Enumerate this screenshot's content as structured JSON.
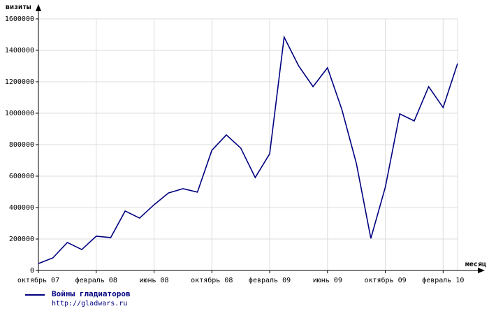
{
  "chart_data": {
    "type": "line",
    "y_label": "визиты",
    "x_label": "месяц",
    "categories": [
      "октябрь 07",
      null,
      null,
      null,
      "февраль 08",
      null,
      null,
      null,
      "июнь 08",
      null,
      null,
      null,
      "октябрь 08",
      null,
      null,
      null,
      "февраль 09",
      null,
      null,
      null,
      "июнь 09",
      null,
      null,
      null,
      "октябрь 09",
      null,
      null,
      null,
      "февраль 10",
      null
    ],
    "series": [
      {
        "name": "Войны гладиаторов",
        "color": "#000080",
        "values": [
          44000,
          80000,
          178000,
          133000,
          218000,
          209000,
          378000,
          333000,
          418000,
          493000,
          520000,
          498000,
          764000,
          862000,
          778000,
          591000,
          742000,
          1484000,
          1302000,
          1169000,
          1289000,
          1022000,
          680000,
          204000,
          529000,
          996000,
          951000,
          1169000,
          1036000,
          1316000
        ]
      }
    ],
    "legend_note": "http://gladwars.ru",
    "ylim": [
      0,
      1600000
    ],
    "yticks": [
      0,
      200000,
      400000,
      600000,
      800000,
      1000000,
      1200000,
      1400000,
      1600000
    ],
    "grid": true
  }
}
